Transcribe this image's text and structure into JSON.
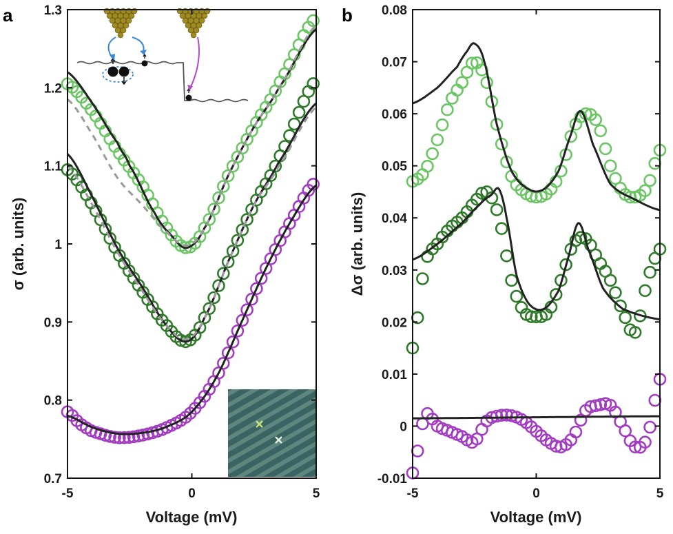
{
  "colors": {
    "light_green": "#6cc565",
    "dark_green": "#2f7a2a",
    "purple": "#a23cc0",
    "fit_line": "#222222",
    "dashed_fit": "#9a9a9a",
    "tip_gold": "#8a7a1c",
    "arrow_blue": "#3a87d6"
  },
  "chart_data": [
    {
      "panel": "a",
      "type": "scatter",
      "xlabel": "Voltage (mV)",
      "ylabel": "σ (arb. units)",
      "xlim": [
        -5,
        5
      ],
      "ylim": [
        0.7,
        1.3
      ],
      "xticks": [
        "-5",
        "0",
        "5"
      ],
      "yticks": [
        "0.7",
        "0.8",
        "0.9",
        "1",
        "1.1",
        "1.2",
        "1.3"
      ],
      "series": [
        {
          "name": "light-green",
          "color": "#6cc565",
          "x": [
            -5,
            -4,
            -3,
            -2,
            -1,
            -0.2,
            0.5,
            1.5,
            2.5,
            3.5,
            5
          ],
          "y": [
            1.205,
            1.17,
            1.12,
            1.075,
            1.02,
            0.995,
            1.02,
            1.09,
            1.15,
            1.205,
            1.29
          ]
        },
        {
          "name": "dark-green",
          "color": "#2f7a2a",
          "x": [
            -5,
            -4,
            -3,
            -2,
            -1,
            -0.2,
            0.5,
            1.5,
            2.5,
            3.5,
            5
          ],
          "y": [
            1.095,
            1.05,
            0.99,
            0.94,
            0.895,
            0.875,
            0.905,
            0.98,
            1.05,
            1.11,
            1.21
          ]
        },
        {
          "name": "purple",
          "color": "#a23cc0",
          "x": [
            -5,
            -4.5,
            -4,
            -3,
            -2,
            -1,
            0,
            1,
            2,
            3,
            4,
            5
          ],
          "y": [
            0.785,
            0.77,
            0.76,
            0.752,
            0.755,
            0.765,
            0.785,
            0.83,
            0.9,
            0.97,
            1.03,
            1.08
          ]
        }
      ],
      "fits": [
        {
          "name": "light-green-fit",
          "style": "solid",
          "x": [
            -5,
            -4,
            -3,
            -2.5,
            -1.5,
            -0.8,
            -0.2,
            0.5,
            1.5,
            2.5,
            3.5,
            5
          ],
          "y": [
            1.22,
            1.18,
            1.13,
            1.1,
            1.04,
            1.01,
            0.995,
            1.02,
            1.09,
            1.15,
            1.2,
            1.275
          ]
        },
        {
          "name": "light-green-dashed-fit",
          "style": "dashed",
          "x": [
            -5,
            -4,
            -3,
            -2,
            -1,
            -0.2,
            0.5,
            1.5,
            2.5,
            3.5,
            5
          ],
          "y": [
            1.185,
            1.14,
            1.085,
            1.05,
            1.015,
            0.998,
            1.02,
            1.09,
            1.15,
            1.2,
            1.28
          ]
        },
        {
          "name": "dark-green-fit",
          "style": "solid",
          "x": [
            -5,
            -4,
            -3,
            -2,
            -1,
            -0.2,
            0.5,
            1.5,
            2.5,
            3.5,
            5
          ],
          "y": [
            1.115,
            1.06,
            0.995,
            0.945,
            0.895,
            0.875,
            0.905,
            0.98,
            1.05,
            1.105,
            1.18
          ]
        },
        {
          "name": "dark-green-dashed-fit",
          "style": "dashed",
          "x": [
            -5,
            -4,
            -3,
            -2,
            -1,
            -0.2,
            0.5,
            1.5,
            2.5,
            3.5,
            5
          ],
          "y": [
            1.1,
            1.05,
            0.99,
            0.94,
            0.895,
            0.878,
            0.905,
            0.98,
            1.05,
            1.1,
            1.175
          ]
        },
        {
          "name": "purple-fit",
          "style": "solid",
          "x": [
            -5,
            -4,
            -3,
            -2,
            -1,
            0,
            1,
            2,
            3,
            4,
            5
          ],
          "y": [
            0.78,
            0.765,
            0.757,
            0.758,
            0.766,
            0.785,
            0.83,
            0.9,
            0.97,
            1.03,
            1.075
          ]
        }
      ]
    },
    {
      "panel": "b",
      "type": "scatter",
      "xlabel": "Voltage (mV)",
      "ylabel": "Δσ (arb. units)",
      "xlim": [
        -5,
        5
      ],
      "ylim": [
        -0.01,
        0.08
      ],
      "xticks": [
        "-5",
        "0",
        "5"
      ],
      "yticks": [
        "-0.01",
        "0",
        "0.01",
        "0.02",
        "0.03",
        "0.04",
        "0.05",
        "0.06",
        "0.07",
        "0.08"
      ],
      "series": [
        {
          "name": "light-green",
          "color": "#6cc565",
          "x": [
            -5,
            -4.5,
            -4,
            -3.5,
            -3,
            -2.5,
            -2,
            -1.5,
            -1,
            -0.5,
            0,
            0.5,
            1,
            1.5,
            2,
            2.5,
            3,
            3.5,
            4,
            4.5,
            5
          ],
          "y": [
            0.047,
            0.049,
            0.055,
            0.062,
            0.066,
            0.07,
            0.066,
            0.056,
            0.048,
            0.045,
            0.044,
            0.045,
            0.049,
            0.057,
            0.06,
            0.058,
            0.05,
            0.045,
            0.044,
            0.046,
            0.053
          ]
        },
        {
          "name": "dark-green",
          "color": "#2f7a2a",
          "x": [
            -5,
            -4.5,
            -4,
            -3.5,
            -3,
            -2.5,
            -2,
            -1.5,
            -1,
            -0.5,
            0,
            0.5,
            1,
            1.5,
            2,
            2.5,
            3,
            3.5,
            4,
            4.5,
            5
          ],
          "y": [
            0.015,
            0.031,
            0.035,
            0.038,
            0.04,
            0.043,
            0.045,
            0.04,
            0.028,
            0.022,
            0.021,
            0.022,
            0.028,
            0.035,
            0.036,
            0.032,
            0.028,
            0.022,
            0.018,
            0.028,
            0.034
          ]
        },
        {
          "name": "purple",
          "color": "#a23cc0",
          "x": [
            -5,
            -4.5,
            -4,
            -3.5,
            -3,
            -2.5,
            -2,
            -1.5,
            -1,
            -0.5,
            0,
            0.5,
            1,
            1.5,
            2,
            2.5,
            3,
            3.5,
            4,
            4.5,
            5
          ],
          "y": [
            -0.009,
            0.002,
            0.0,
            -0.001,
            -0.002,
            -0.003,
            0.001,
            0.002,
            0.002,
            0.001,
            -0.001,
            -0.003,
            -0.004,
            -0.002,
            0.003,
            0.004,
            0.004,
            0.0,
            -0.004,
            -0.002,
            0.009
          ]
        }
      ],
      "fits": [
        {
          "name": "light-green-fit",
          "style": "solid",
          "x": [
            -5,
            -4,
            -3.2,
            -2.8,
            -2.5,
            -2.1,
            -1.6,
            -1.0,
            -0.3,
            0.3,
            0.9,
            1.4,
            1.8,
            2.3,
            3.0,
            4.0,
            5
          ],
          "y": [
            0.062,
            0.065,
            0.069,
            0.072,
            0.0735,
            0.07,
            0.058,
            0.049,
            0.0455,
            0.0455,
            0.049,
            0.056,
            0.0605,
            0.054,
            0.0465,
            0.0435,
            0.0415
          ]
        },
        {
          "name": "dark-green-fit",
          "style": "solid",
          "x": [
            -5,
            -4,
            -3,
            -2.3,
            -1.8,
            -1.5,
            -1.2,
            -0.8,
            -0.3,
            0.3,
            0.9,
            1.3,
            1.7,
            2.1,
            2.7,
            3.5,
            5
          ],
          "y": [
            0.032,
            0.035,
            0.039,
            0.0425,
            0.0445,
            0.0455,
            0.04,
            0.029,
            0.0235,
            0.0225,
            0.026,
            0.0325,
            0.039,
            0.034,
            0.0265,
            0.0225,
            0.0205
          ]
        },
        {
          "name": "purple-fit",
          "style": "solid",
          "x": [
            -5,
            0,
            5
          ],
          "y": [
            0.0015,
            0.0017,
            0.0019
          ]
        }
      ]
    }
  ],
  "labels": {
    "panel_a": "a",
    "panel_b": "b"
  }
}
